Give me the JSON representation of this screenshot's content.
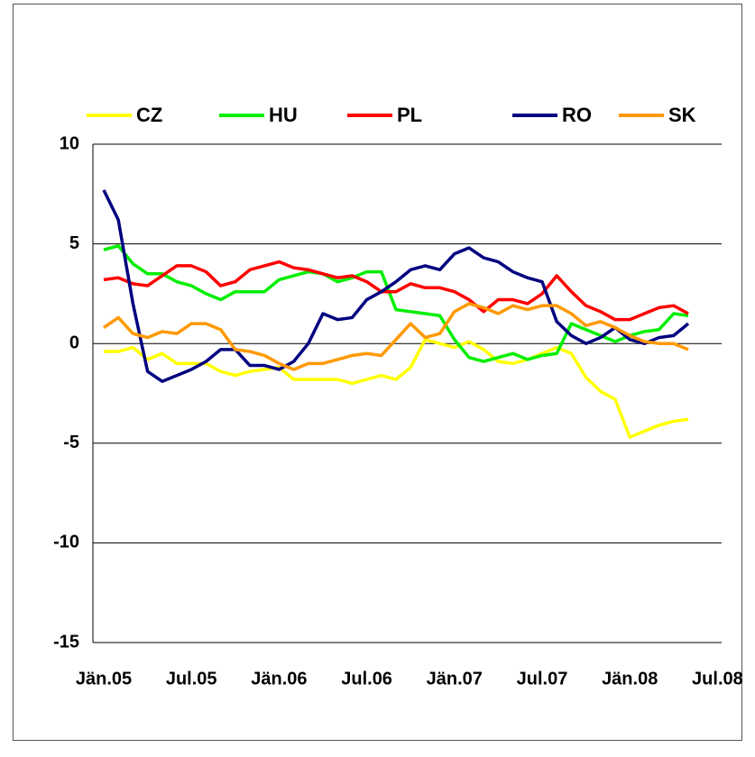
{
  "chart_data": {
    "type": "line",
    "categories": [
      "Jän.05",
      null,
      null,
      null,
      null,
      null,
      "Jul.05",
      null,
      null,
      null,
      null,
      null,
      "Jän.06",
      null,
      null,
      null,
      null,
      null,
      "Jul.06",
      null,
      null,
      null,
      null,
      null,
      "Jän.07",
      null,
      null,
      null,
      null,
      null,
      "Jul.07",
      null,
      null,
      null,
      null,
      null,
      "Jän.08",
      null,
      null,
      null,
      null,
      null,
      "Jul.08"
    ],
    "series": [
      {
        "name": "CZ",
        "color": "#ffff00",
        "values": [
          -0.4,
          -0.4,
          -0.2,
          -0.8,
          -0.5,
          -1.0,
          -1.0,
          -1.0,
          -1.4,
          -1.6,
          -1.4,
          -1.3,
          -1.2,
          -1.8,
          -1.8,
          -1.8,
          -1.8,
          -2.0,
          -1.8,
          -1.6,
          -1.8,
          -1.2,
          0.2,
          0.0,
          -0.2,
          0.1,
          -0.3,
          -0.9,
          -1.0,
          -0.8,
          -0.5,
          -0.2,
          -0.5,
          -1.7,
          -2.4,
          -2.8,
          -4.7,
          -4.4,
          -4.1,
          -3.9,
          -3.8,
          null,
          null
        ]
      },
      {
        "name": "HU",
        "color": "#00ee00",
        "values": [
          4.7,
          4.9,
          4.0,
          3.5,
          3.5,
          3.1,
          2.9,
          2.5,
          2.2,
          2.6,
          2.6,
          2.6,
          3.2,
          3.4,
          3.6,
          3.5,
          3.1,
          3.3,
          3.6,
          3.6,
          1.7,
          1.6,
          1.5,
          1.4,
          0.2,
          -0.7,
          -0.9,
          -0.7,
          -0.5,
          -0.8,
          -0.6,
          -0.5,
          1.0,
          0.7,
          0.4,
          0.1,
          0.4,
          0.6,
          0.7,
          1.5,
          1.4,
          null,
          null
        ]
      },
      {
        "name": "PL",
        "color": "#ff0000",
        "values": [
          3.2,
          3.3,
          3.0,
          2.9,
          3.4,
          3.9,
          3.9,
          3.6,
          2.9,
          3.1,
          3.7,
          3.9,
          4.1,
          3.8,
          3.7,
          3.5,
          3.3,
          3.4,
          3.1,
          2.6,
          2.6,
          3.0,
          2.8,
          2.8,
          2.6,
          2.2,
          1.6,
          2.2,
          2.2,
          2.0,
          2.5,
          3.4,
          2.6,
          1.9,
          1.6,
          1.2,
          1.2,
          1.5,
          1.8,
          1.9,
          1.5,
          null,
          null
        ]
      },
      {
        "name": "RO",
        "color": "#000080",
        "values": [
          7.7,
          6.2,
          2.0,
          -1.4,
          -1.9,
          -1.6,
          -1.3,
          -0.9,
          -0.3,
          -0.3,
          -1.1,
          -1.1,
          -1.3,
          -0.9,
          0.0,
          1.5,
          1.2,
          1.3,
          2.2,
          2.6,
          3.1,
          3.7,
          3.9,
          3.7,
          4.5,
          4.8,
          4.3,
          4.1,
          3.6,
          3.3,
          3.1,
          1.1,
          0.4,
          0.0,
          0.3,
          0.8,
          0.2,
          0.0,
          0.3,
          0.4,
          1.0,
          null,
          null
        ]
      },
      {
        "name": "SK",
        "color": "#ff9900",
        "values": [
          0.8,
          1.3,
          0.5,
          0.3,
          0.6,
          0.5,
          1.0,
          1.0,
          0.7,
          -0.3,
          -0.4,
          -0.6,
          -1.0,
          -1.3,
          -1.0,
          -1.0,
          -0.8,
          -0.6,
          -0.5,
          -0.6,
          0.2,
          1.0,
          0.3,
          0.5,
          1.6,
          2.0,
          1.8,
          1.5,
          1.9,
          1.7,
          1.9,
          1.9,
          1.5,
          0.9,
          1.1,
          0.8,
          0.4,
          0.1,
          0.0,
          0.0,
          -0.3,
          null,
          null
        ]
      }
    ],
    "ylim": [
      -15,
      10
    ],
    "yticks": [
      -15,
      -10,
      -5,
      0,
      5,
      10
    ],
    "grid": true,
    "legend": "top"
  }
}
